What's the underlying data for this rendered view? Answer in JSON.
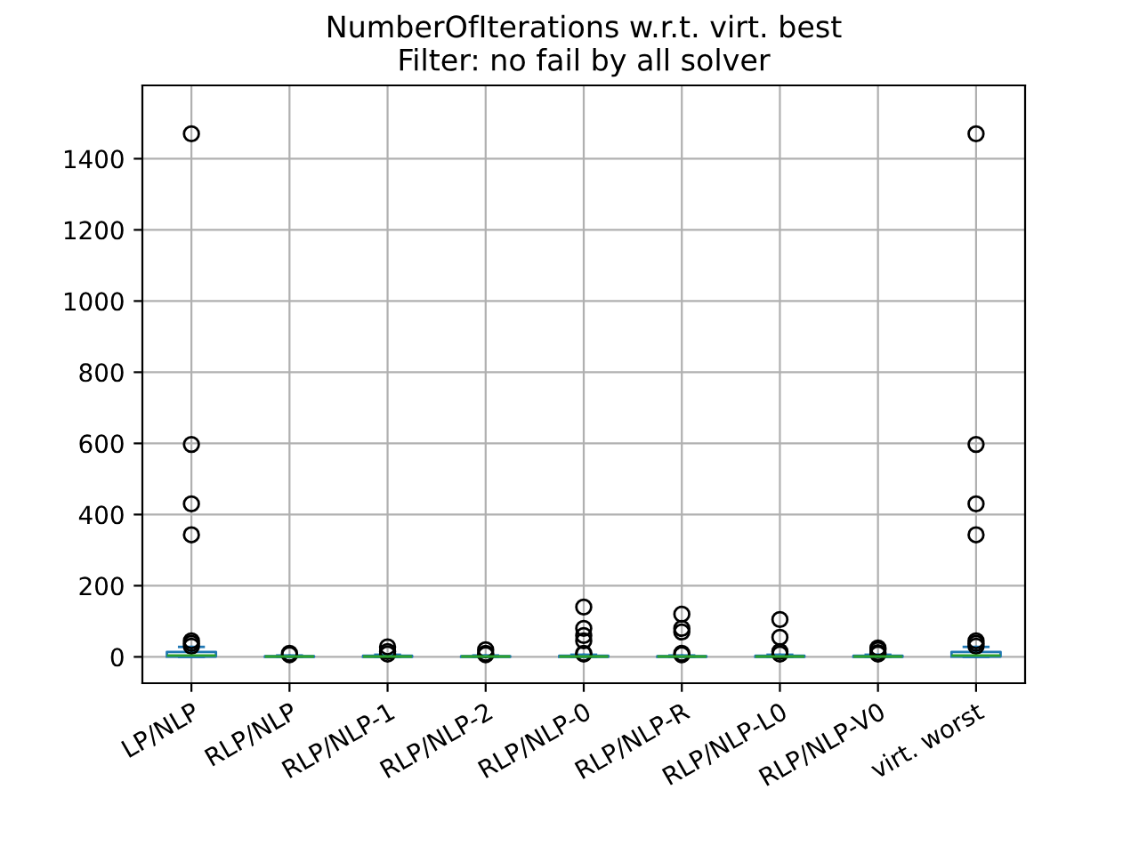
{
  "chart_data": {
    "type": "box",
    "title": "NumberOfIterations w.r.t. virt. best\nFilter: no fail by all solver",
    "categories": [
      "LP/NLP",
      "RLP/NLP",
      "RLP/NLP-1",
      "RLP/NLP-2",
      "RLP/NLP-0",
      "RLP/NLP-R",
      "RLP/NLP-L0",
      "RLP/NLP-V0",
      "virt. worst"
    ],
    "boxes": [
      {
        "low": 0,
        "q1": 1,
        "median": 4,
        "q3": 14,
        "high": 28,
        "outliers": [
          1470,
          597,
          430,
          343,
          45,
          38,
          30
        ]
      },
      {
        "low": 0,
        "q1": 0,
        "median": 1,
        "q3": 2,
        "high": 4,
        "outliers": [
          10,
          6
        ]
      },
      {
        "low": 0,
        "q1": 0,
        "median": 1,
        "q3": 3,
        "high": 6,
        "outliers": [
          28,
          15,
          8
        ]
      },
      {
        "low": 0,
        "q1": 0,
        "median": 1,
        "q3": 2,
        "high": 4,
        "outliers": [
          20,
          10,
          6
        ]
      },
      {
        "low": 0,
        "q1": 0,
        "median": 1,
        "q3": 3,
        "high": 6,
        "outliers": [
          140,
          80,
          60,
          45,
          10,
          8
        ]
      },
      {
        "low": 0,
        "q1": 0,
        "median": 1,
        "q3": 2,
        "high": 4,
        "outliers": [
          120,
          80,
          70,
          10,
          6
        ]
      },
      {
        "low": 0,
        "q1": 0,
        "median": 1,
        "q3": 3,
        "high": 6,
        "outliers": [
          105,
          55,
          15,
          8
        ]
      },
      {
        "low": 0,
        "q1": 0,
        "median": 1,
        "q3": 3,
        "high": 6,
        "outliers": [
          25,
          20,
          12,
          8
        ]
      },
      {
        "low": 0,
        "q1": 1,
        "median": 4,
        "q3": 14,
        "high": 28,
        "outliers": [
          1470,
          597,
          430,
          343,
          45,
          38,
          30
        ]
      }
    ],
    "color": "#1f77b4",
    "ylim": [
      -74,
      1606
    ],
    "yticks": [
      0,
      200,
      400,
      600,
      800,
      1000,
      1200,
      1400
    ],
    "grid": true
  }
}
